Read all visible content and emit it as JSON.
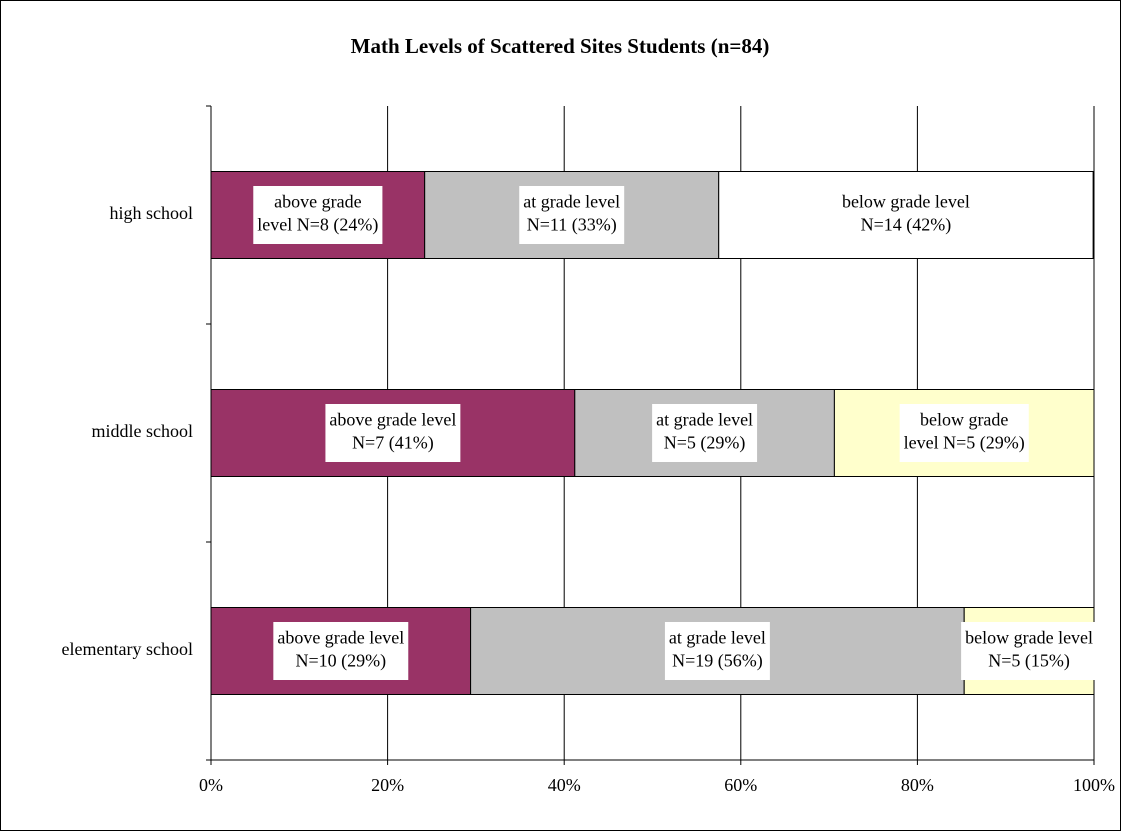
{
  "chart_data": {
    "type": "stacked_barh",
    "title": "Math Levels of Scattered Sites Students (n=84)",
    "categories": [
      "high school",
      "middle school",
      "elementary school"
    ],
    "series": [
      {
        "name": "above grade level",
        "color": "#993366",
        "colors": [
          "#993366",
          "#993366",
          "#993366"
        ],
        "values": [
          24.2,
          41.2,
          29.4
        ],
        "value_labels": [
          [
            "above grade",
            "level N=8 (24%)"
          ],
          [
            "above grade level",
            "N=7 (41%)"
          ],
          [
            "above grade level",
            "N=10 (29%)"
          ]
        ]
      },
      {
        "name": "at grade level",
        "color": "#c0c0c0",
        "colors": [
          "#c0c0c0",
          "#c0c0c0",
          "#c0c0c0"
        ],
        "values": [
          33.3,
          29.4,
          55.9
        ],
        "value_labels": [
          [
            "at grade level",
            "N=11 (33%)"
          ],
          [
            "at grade level",
            "N=5 (29%)"
          ],
          [
            "at grade level",
            "N=19 (56%)"
          ]
        ]
      },
      {
        "name": "below grade level",
        "color": "#ffffcc",
        "colors": [
          "#ffffff",
          "#ffffcc",
          "#ffffcc"
        ],
        "values": [
          42.4,
          29.4,
          14.7
        ],
        "value_labels": [
          [
            "below grade level",
            "N=14 (42%)"
          ],
          [
            "below grade",
            "level N=5 (29%)"
          ],
          [
            "below grade level",
            "N=5 (15%)"
          ]
        ]
      }
    ],
    "xlim": [
      0,
      100
    ],
    "xticks": [
      {
        "value": 0,
        "label": "0%"
      },
      {
        "value": 20,
        "label": "20%"
      },
      {
        "value": 40,
        "label": "40%"
      },
      {
        "value": 60,
        "label": "60%"
      },
      {
        "value": 80,
        "label": "80%"
      },
      {
        "value": 100,
        "label": "100%"
      }
    ],
    "grid": true
  }
}
